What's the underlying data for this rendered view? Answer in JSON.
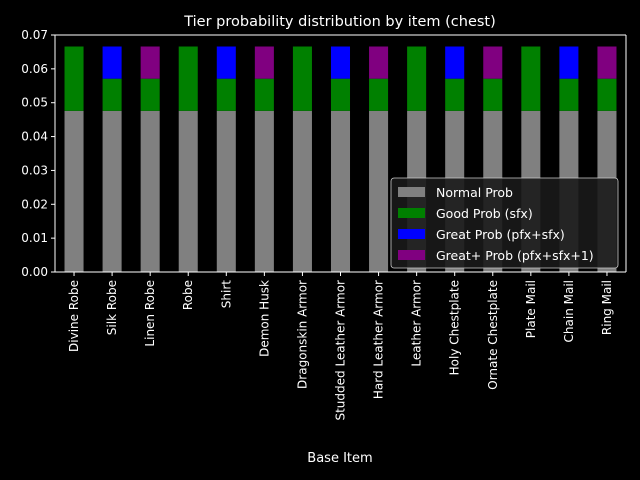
{
  "chart_data": {
    "type": "bar",
    "stacked": true,
    "title": "Tier probability distribution by item (chest)",
    "xlabel": "Base Item",
    "ylabel": "",
    "ylim": [
      0,
      0.07
    ],
    "yticks": [
      "0.00",
      "0.01",
      "0.02",
      "0.03",
      "0.04",
      "0.05",
      "0.06",
      "0.07"
    ],
    "grid": false,
    "legend_position": "lower-right",
    "categories": [
      "Divine Robe",
      "Silk Robe",
      "Linen Robe",
      "Robe",
      "Shirt",
      "Demon Husk",
      "Dragonskin Armor",
      "Studded Leather Armor",
      "Hard Leather Armor",
      "Leather Armor",
      "Holy Chestplate",
      "Ornate Chestplate",
      "Plate Mail",
      "Chain Mail",
      "Ring Mail"
    ],
    "series": [
      {
        "name": "Normal Prob",
        "color": "#808080",
        "values": [
          0.0476,
          0.0476,
          0.0476,
          0.0476,
          0.0476,
          0.0476,
          0.0476,
          0.0476,
          0.0476,
          0.0476,
          0.0476,
          0.0476,
          0.0476,
          0.0476,
          0.0476
        ]
      },
      {
        "name": "Good Prob (sfx)",
        "color": "#008000",
        "values": [
          0.019,
          0.0095,
          0.0095,
          0.019,
          0.0095,
          0.0095,
          0.019,
          0.0095,
          0.0095,
          0.019,
          0.0095,
          0.0095,
          0.019,
          0.0095,
          0.0095
        ]
      },
      {
        "name": "Great Prob (pfx+sfx)",
        "color": "#0000ff",
        "values": [
          0,
          0.0095,
          0,
          0,
          0.0095,
          0,
          0,
          0.0095,
          0,
          0,
          0.0095,
          0,
          0,
          0.0095,
          0
        ]
      },
      {
        "name": "Great+ Prob (pfx+sfx+1)",
        "color": "#800080",
        "values": [
          0,
          0,
          0.0095,
          0,
          0,
          0.0095,
          0,
          0,
          0.0095,
          0,
          0,
          0.0095,
          0,
          0,
          0.0095
        ]
      }
    ]
  }
}
